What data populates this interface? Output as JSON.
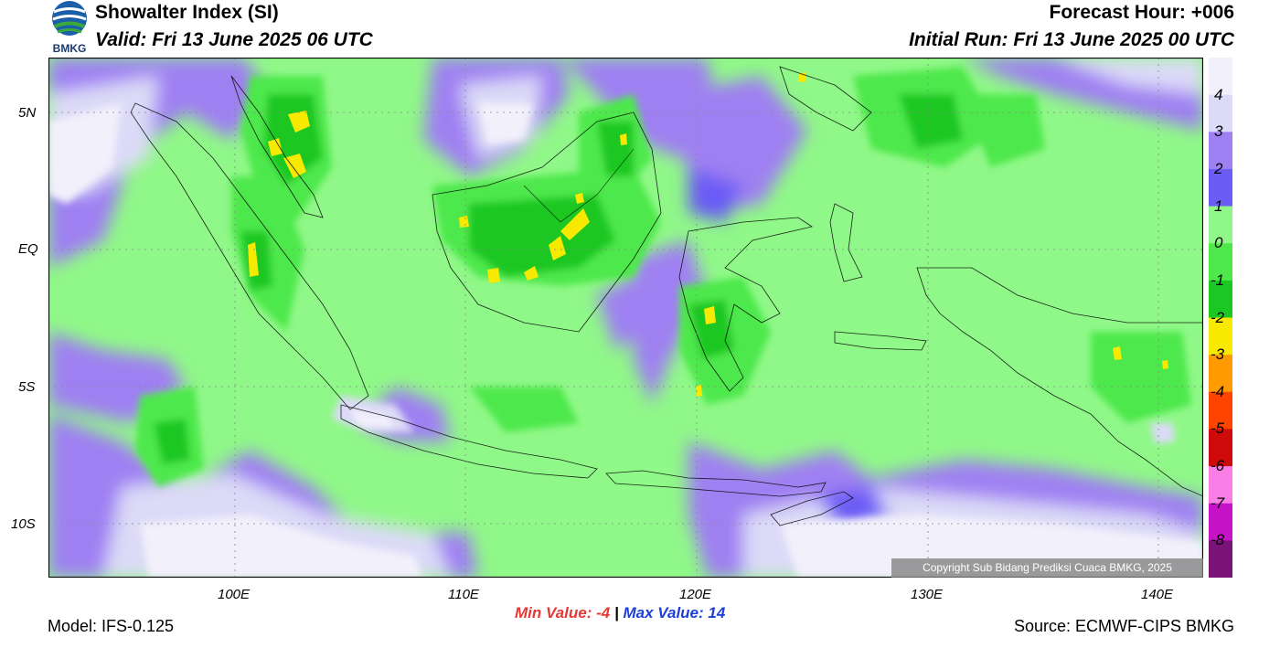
{
  "header": {
    "title": "Showalter Index (SI)",
    "valid": "Valid: Fri 13 June 2025 06 UTC",
    "forecast_hour": "Forecast Hour: +006",
    "initial_run": "Initial Run: Fri 13 June 2025 00 UTC"
  },
  "logo": {
    "text": "BMKG",
    "icon": "bmkg-logo-icon"
  },
  "axes": {
    "lat_ticks": [
      "5N",
      "EQ",
      "5S",
      "10S"
    ],
    "lon_ticks": [
      "100E",
      "110E",
      "120E",
      "130E",
      "140E"
    ]
  },
  "legend": {
    "labels": [
      "4",
      "3",
      "2",
      "1",
      "0",
      "-1",
      "-2",
      "-3",
      "-4",
      "-5",
      "-6",
      "-7",
      "-8"
    ],
    "colors": [
      "#f2f0fb",
      "#dcdaf7",
      "#9f80f2",
      "#6b5cf5",
      "#90f888",
      "#4ee84b",
      "#1bc723",
      "#f7e900",
      "#ff9a00",
      "#ff4400",
      "#cf0a0a",
      "#f97ee6",
      "#c713c7",
      "#7b1278"
    ]
  },
  "footer": {
    "min_label": "Min Value:",
    "min_value": "-4",
    "separator": "|",
    "max_label": "Max Value:",
    "max_value": "14",
    "model": "Model: IFS-0.125",
    "source": "Source: ECMWF-CIPS BMKG",
    "copyright": "Copyright Sub Bidang Prediksi Cuaca BMKG, 2025"
  }
}
